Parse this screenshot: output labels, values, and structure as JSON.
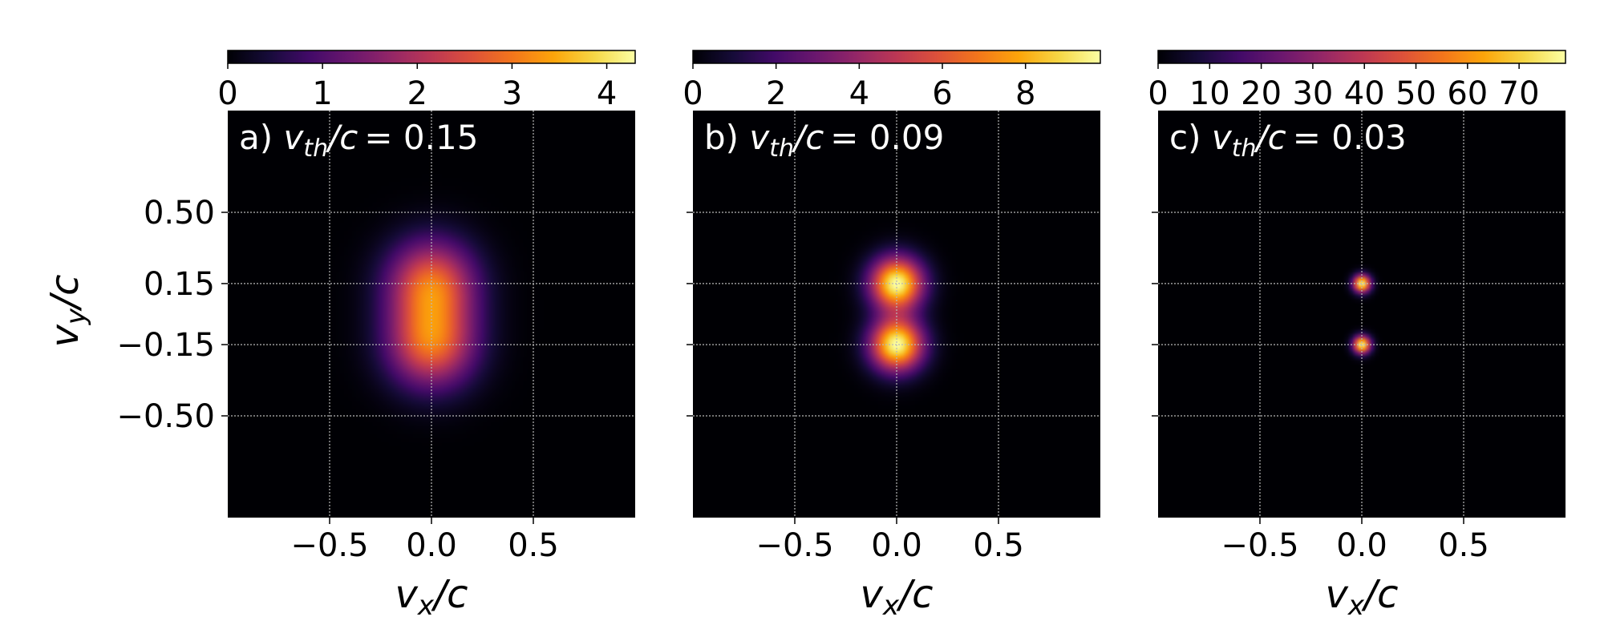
{
  "chart_data": [
    {
      "type": "heatmap",
      "panel_label": "a)",
      "panel_value": "= 0.15",
      "xlabel_var": "v",
      "xlabel_sub": "x",
      "xlabel_unit": "/c",
      "ylabel_var": "v",
      "ylabel_sub": "y",
      "ylabel_unit": "/c",
      "xlim": [
        -1,
        1
      ],
      "ylim": [
        -1,
        1
      ],
      "xticks": [
        -0.5,
        0.0,
        0.5
      ],
      "xtick_labels": [
        "−0.5",
        "0.0",
        "0.5"
      ],
      "yticks": [
        0.5,
        0.15,
        -0.15,
        -0.5
      ],
      "ytick_labels": [
        "0.50",
        "0.15",
        "−0.15",
        "−0.50"
      ],
      "colorbar": {
        "min": 0,
        "max": 4.3,
        "ticks": [
          0,
          1,
          2,
          3,
          4
        ],
        "tick_labels": [
          "0",
          "1",
          "2",
          "3",
          "4"
        ],
        "colormap": "inferno",
        "location": "top"
      },
      "components": [
        {
          "vx": 0.0,
          "vy": 0.15,
          "sigma": 0.15,
          "amplitude": 2.8
        },
        {
          "vx": 0.0,
          "vy": -0.15,
          "sigma": 0.15,
          "amplitude": 2.8
        }
      ],
      "grid": true,
      "show_ytick_labels": true
    },
    {
      "type": "heatmap",
      "panel_label": "b)",
      "panel_value": "= 0.09",
      "xlabel_var": "v",
      "xlabel_sub": "x",
      "xlabel_unit": "/c",
      "xlim": [
        -1,
        1
      ],
      "ylim": [
        -1,
        1
      ],
      "xticks": [
        -0.5,
        0.0,
        0.5
      ],
      "xtick_labels": [
        "−0.5",
        "0.0",
        "0.5"
      ],
      "yticks": [
        0.5,
        0.15,
        -0.15,
        -0.5
      ],
      "colorbar": {
        "min": 0,
        "max": 9.8,
        "ticks": [
          0,
          2,
          4,
          6,
          8
        ],
        "tick_labels": [
          "0",
          "2",
          "4",
          "6",
          "8"
        ],
        "colormap": "inferno",
        "location": "top"
      },
      "components": [
        {
          "vx": 0.0,
          "vy": 0.15,
          "sigma": 0.09,
          "amplitude": 9.8
        },
        {
          "vx": 0.0,
          "vy": -0.15,
          "sigma": 0.09,
          "amplitude": 9.8
        }
      ],
      "grid": true,
      "show_ytick_labels": false
    },
    {
      "type": "heatmap",
      "panel_label": "c)",
      "panel_value": "= 0.03",
      "xlabel_var": "v",
      "xlabel_sub": "x",
      "xlabel_unit": "/c",
      "xlim": [
        -1,
        1
      ],
      "ylim": [
        -1,
        1
      ],
      "xticks": [
        -0.5,
        0.0,
        0.5
      ],
      "xtick_labels": [
        "−0.5",
        "0.0",
        "0.5"
      ],
      "yticks": [
        0.5,
        0.15,
        -0.15,
        -0.5
      ],
      "colorbar": {
        "min": 0,
        "max": 79,
        "ticks": [
          0,
          10,
          20,
          30,
          40,
          50,
          60,
          70
        ],
        "tick_labels": [
          "0",
          "10",
          "20",
          "30",
          "40",
          "50",
          "60",
          "70"
        ],
        "colormap": "inferno",
        "location": "top"
      },
      "components": [
        {
          "vx": 0.0,
          "vy": 0.15,
          "sigma": 0.03,
          "amplitude": 79
        },
        {
          "vx": 0.0,
          "vy": -0.15,
          "sigma": 0.03,
          "amplitude": 79
        }
      ],
      "grid": true,
      "show_ytick_labels": false
    }
  ]
}
